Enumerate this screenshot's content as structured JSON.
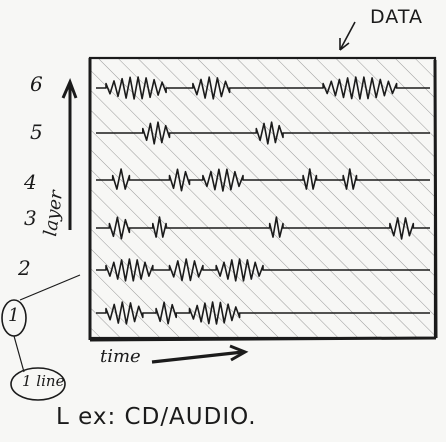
{
  "diagram": {
    "data_label": "DATA",
    "layer_axis_label": "layer",
    "time_axis_label": "time",
    "layer_numbers": [
      "6",
      "5",
      "4",
      "3",
      "2",
      "1"
    ],
    "circle_label": "1 line",
    "caption": "L ex: CD/AUDIO.",
    "rows": [
      {
        "layer": "6",
        "bursts": [
          [
            0.03,
            0.21
          ],
          [
            0.29,
            0.4
          ],
          [
            0.68,
            0.9
          ]
        ]
      },
      {
        "layer": "5",
        "bursts": [
          [
            0.14,
            0.22
          ],
          [
            0.48,
            0.56
          ]
        ]
      },
      {
        "layer": "4",
        "bursts": [
          [
            0.05,
            0.1
          ],
          [
            0.22,
            0.28
          ],
          [
            0.32,
            0.44
          ],
          [
            0.62,
            0.66
          ],
          [
            0.74,
            0.78
          ]
        ]
      },
      {
        "layer": "3",
        "bursts": [
          [
            0.04,
            0.1
          ],
          [
            0.17,
            0.21
          ],
          [
            0.52,
            0.56
          ],
          [
            0.88,
            0.95
          ]
        ]
      },
      {
        "layer": "2",
        "bursts": [
          [
            0.03,
            0.17
          ],
          [
            0.22,
            0.32
          ],
          [
            0.36,
            0.5
          ]
        ]
      },
      {
        "layer": "1",
        "bursts": [
          [
            0.03,
            0.14
          ],
          [
            0.18,
            0.24
          ],
          [
            0.28,
            0.43
          ]
        ]
      }
    ]
  }
}
